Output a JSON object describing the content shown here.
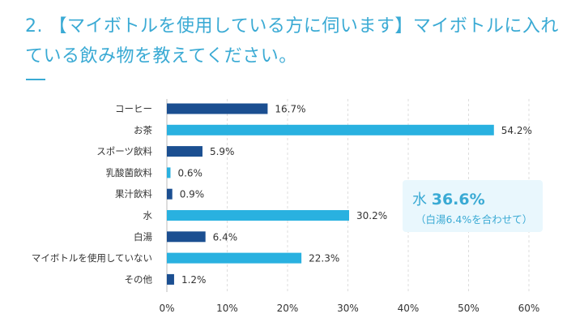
{
  "title": "2. 【マイボトルを使用している方に伺います】マイボトルに入れている飲み物を教えてください。",
  "note": {
    "label": "水",
    "value": "36.6%",
    "sub": "（白湯6.4%を合わせて）"
  },
  "colors": {
    "title": "#3aaad4",
    "dark": "#1b4f91",
    "light": "#29b1e0"
  },
  "chart_data": {
    "type": "bar",
    "orientation": "horizontal",
    "categories": [
      "コーヒー",
      "お茶",
      "スポーツ飲料",
      "乳酸菌飲料",
      "果汁飲料",
      "水",
      "白湯",
      "マイボトルを使用していない",
      "その他"
    ],
    "values": [
      16.7,
      54.2,
      5.9,
      0.6,
      0.9,
      30.2,
      6.4,
      22.3,
      1.2
    ],
    "data_labels": [
      "16.7%",
      "54.2%",
      "5.9%",
      "0.6%",
      "0.9%",
      "30.2%",
      "6.4%",
      "22.3%",
      "1.2%"
    ],
    "xlim": [
      0,
      60
    ],
    "xticks": [
      0,
      10,
      20,
      30,
      40,
      50,
      60
    ],
    "xtick_labels": [
      "0%",
      "10%",
      "20%",
      "30%",
      "40%",
      "50%",
      "60%"
    ],
    "grid": "vertical dashed",
    "title": "",
    "xlabel": "",
    "ylabel": ""
  }
}
